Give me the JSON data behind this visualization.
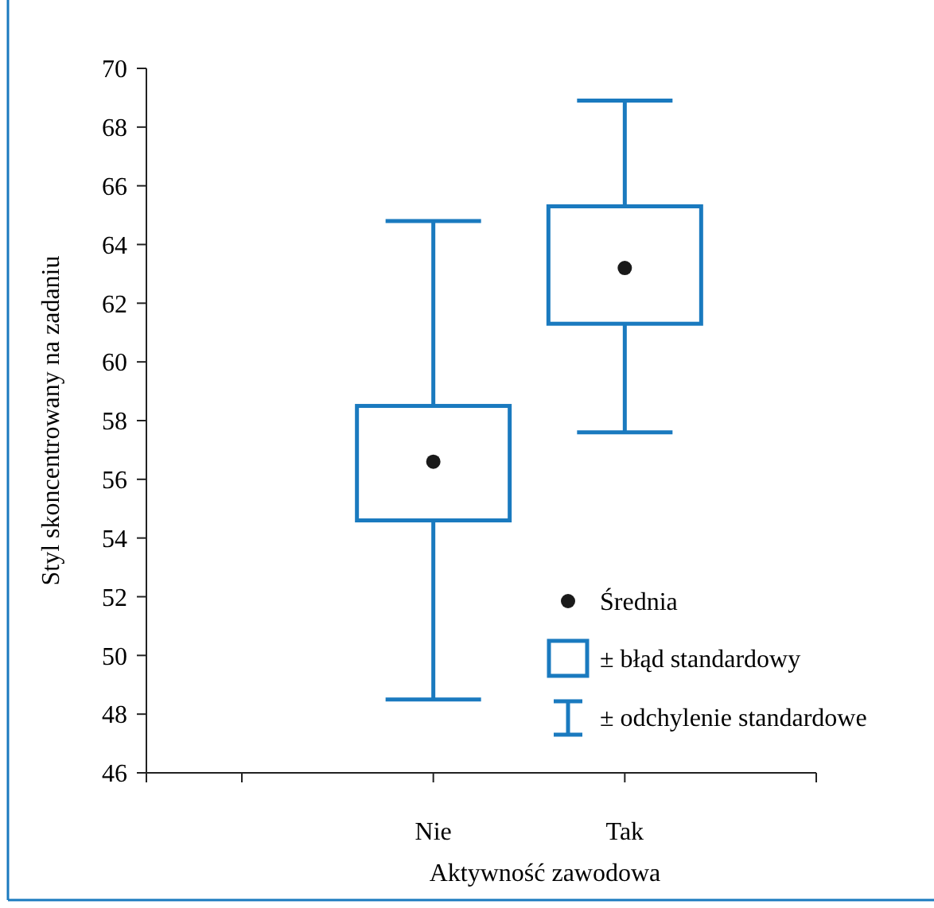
{
  "chart_data": {
    "type": "box",
    "xlabel": "Aktywność zawodowa",
    "ylabel": "Styl skoncentrowany na zadaniu",
    "categories": [
      null,
      "Nie",
      "Tak",
      null
    ],
    "boxes": [
      null,
      {
        "low": 48.5,
        "q1": 54.6,
        "q3": 58.5,
        "high": 64.8,
        "mean": 56.6
      },
      {
        "low": 57.6,
        "q1": 61.3,
        "q3": 65.3,
        "high": 68.9,
        "mean": 63.2
      },
      null
    ],
    "color": "#1a7abf",
    "ylim": [
      46,
      70
    ],
    "yticks": [
      46,
      48,
      50,
      52,
      54,
      56,
      58,
      60,
      62,
      64,
      66,
      68,
      70
    ],
    "annotations": [
      "Średnia",
      "± błąd standardowy",
      "± odchylenie standardowe"
    ]
  }
}
